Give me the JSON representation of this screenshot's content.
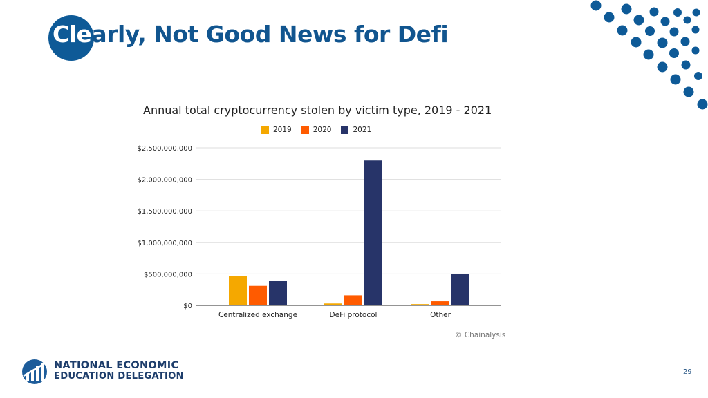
{
  "slide": {
    "title_lead": "Cle",
    "title_rest": "arly, Not Good News for Defi",
    "page_number": "29",
    "source": "© Chainalysis"
  },
  "logo": {
    "line1": "NATIONAL ECONOMIC",
    "line2": "EDUCATION DELEGATION"
  },
  "colors": {
    "brand_blue": "#0e5a97",
    "series_2019": "#f5a800",
    "series_2020": "#ff5b00",
    "series_2021": "#273469"
  },
  "chart_data": {
    "type": "bar",
    "title": "Annual total cryptocurrency stolen by victim type, 2019 - 2021",
    "categories": [
      "Centralized exchange",
      "DeFi protocol",
      "Other"
    ],
    "series": [
      {
        "name": "2019",
        "values": [
          470000000,
          30000000,
          20000000
        ]
      },
      {
        "name": "2020",
        "values": [
          310000000,
          160000000,
          65000000
        ]
      },
      {
        "name": "2021",
        "values": [
          390000000,
          2300000000,
          500000000
        ]
      }
    ],
    "yticks": [
      "$0",
      "$500,000,000",
      "$1,000,000,000",
      "$1,500,000,000",
      "$2,000,000,000",
      "$2,500,000,000"
    ],
    "ylim": [
      0,
      2500000000
    ],
    "grid": true,
    "legend_position": "top-center",
    "xlabel": "",
    "ylabel": ""
  }
}
